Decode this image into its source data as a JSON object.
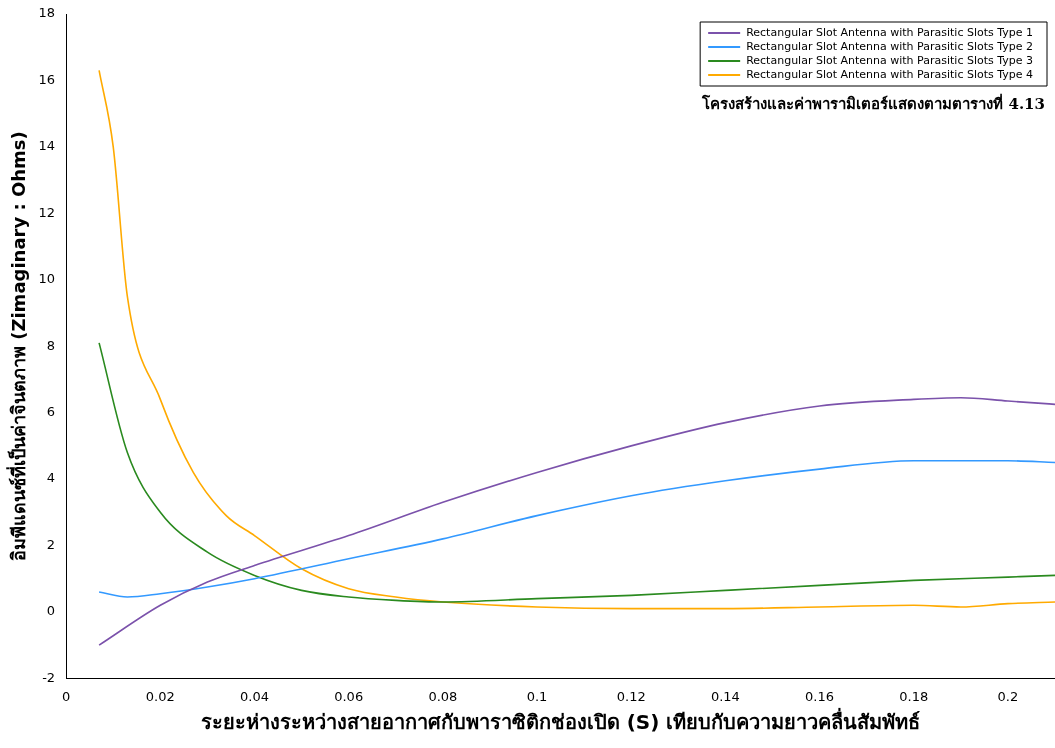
{
  "chart_data": {
    "type": "line",
    "xlabel": "ระยะห่างระหว่างสายอากาศกับพาราซิติกช่องเปิด (S) เทียบกับความยาวคลื่นสัมพัทธ์",
    "ylabel": "อิมพีแดนซ์ที่เป็นค่าจินตภาพ (Zimaginary : Ohms)",
    "annotations": [
      "โครงสร้างและค่าพารามิเตอร์แสดงตามตารางที่ 4.13"
    ],
    "xlim": [
      0,
      0.21
    ],
    "xticks": [
      0,
      0.02,
      0.04,
      0.06,
      0.08,
      0.1,
      0.12,
      0.14,
      0.16,
      0.18,
      0.2
    ],
    "ylim": [
      -2,
      18
    ],
    "yticks": [
      -2,
      0,
      2,
      4,
      6,
      8,
      10,
      12,
      14,
      16,
      18
    ],
    "grid": false,
    "legend": "top right",
    "marker": "none",
    "line_style": "solid",
    "series": [
      {
        "name": "Rectangular Slot Antenna with Parasitic Slots Type 1",
        "color": "#7b52ab",
        "x": [
          0.007,
          0.02,
          0.03,
          0.04,
          0.06,
          0.08,
          0.1,
          0.12,
          0.14,
          0.16,
          0.18,
          0.19,
          0.2,
          0.21
        ],
        "values": [
          -1,
          0.2,
          0.9,
          1.4,
          2.3,
          3.3,
          4.2,
          5.0,
          5.7,
          6.2,
          6.4,
          6.45,
          6.35,
          6.25
        ]
      },
      {
        "name": "Rectangular Slot Antenna with Parasitic Slots Type 2",
        "color": "#3399ff",
        "x": [
          0.007,
          0.013,
          0.02,
          0.03,
          0.04,
          0.06,
          0.08,
          0.1,
          0.12,
          0.14,
          0.16,
          0.18,
          0.2,
          0.21
        ],
        "values": [
          0.6,
          0.45,
          0.55,
          0.75,
          1.0,
          1.6,
          2.2,
          2.9,
          3.5,
          3.95,
          4.3,
          4.55,
          4.55,
          4.5
        ]
      },
      {
        "name": "Rectangular Slot Antenna with Parasitic Slots Type 3",
        "color": "#2a8a1f",
        "x": [
          0.007,
          0.013,
          0.02,
          0.03,
          0.04,
          0.05,
          0.06,
          0.07,
          0.08,
          0.1,
          0.12,
          0.14,
          0.16,
          0.18,
          0.2,
          0.21
        ],
        "values": [
          8.1,
          4.8,
          3.0,
          1.8,
          1.1,
          0.65,
          0.45,
          0.35,
          0.3,
          0.4,
          0.5,
          0.65,
          0.8,
          0.95,
          1.05,
          1.1
        ]
      },
      {
        "name": "Rectangular Slot Antenna with Parasitic Slots Type 4",
        "color": "#ffaa00",
        "x": [
          0.007,
          0.01,
          0.013,
          0.02,
          0.027,
          0.034,
          0.04,
          0.05,
          0.06,
          0.07,
          0.08,
          0.1,
          0.12,
          0.14,
          0.16,
          0.18,
          0.19,
          0.2,
          0.21
        ],
        "values": [
          16.3,
          14,
          9.5,
          6.4,
          4.2,
          2.9,
          2.3,
          1.3,
          0.7,
          0.45,
          0.3,
          0.15,
          0.1,
          0.1,
          0.15,
          0.2,
          0.15,
          0.25,
          0.3
        ]
      }
    ]
  }
}
